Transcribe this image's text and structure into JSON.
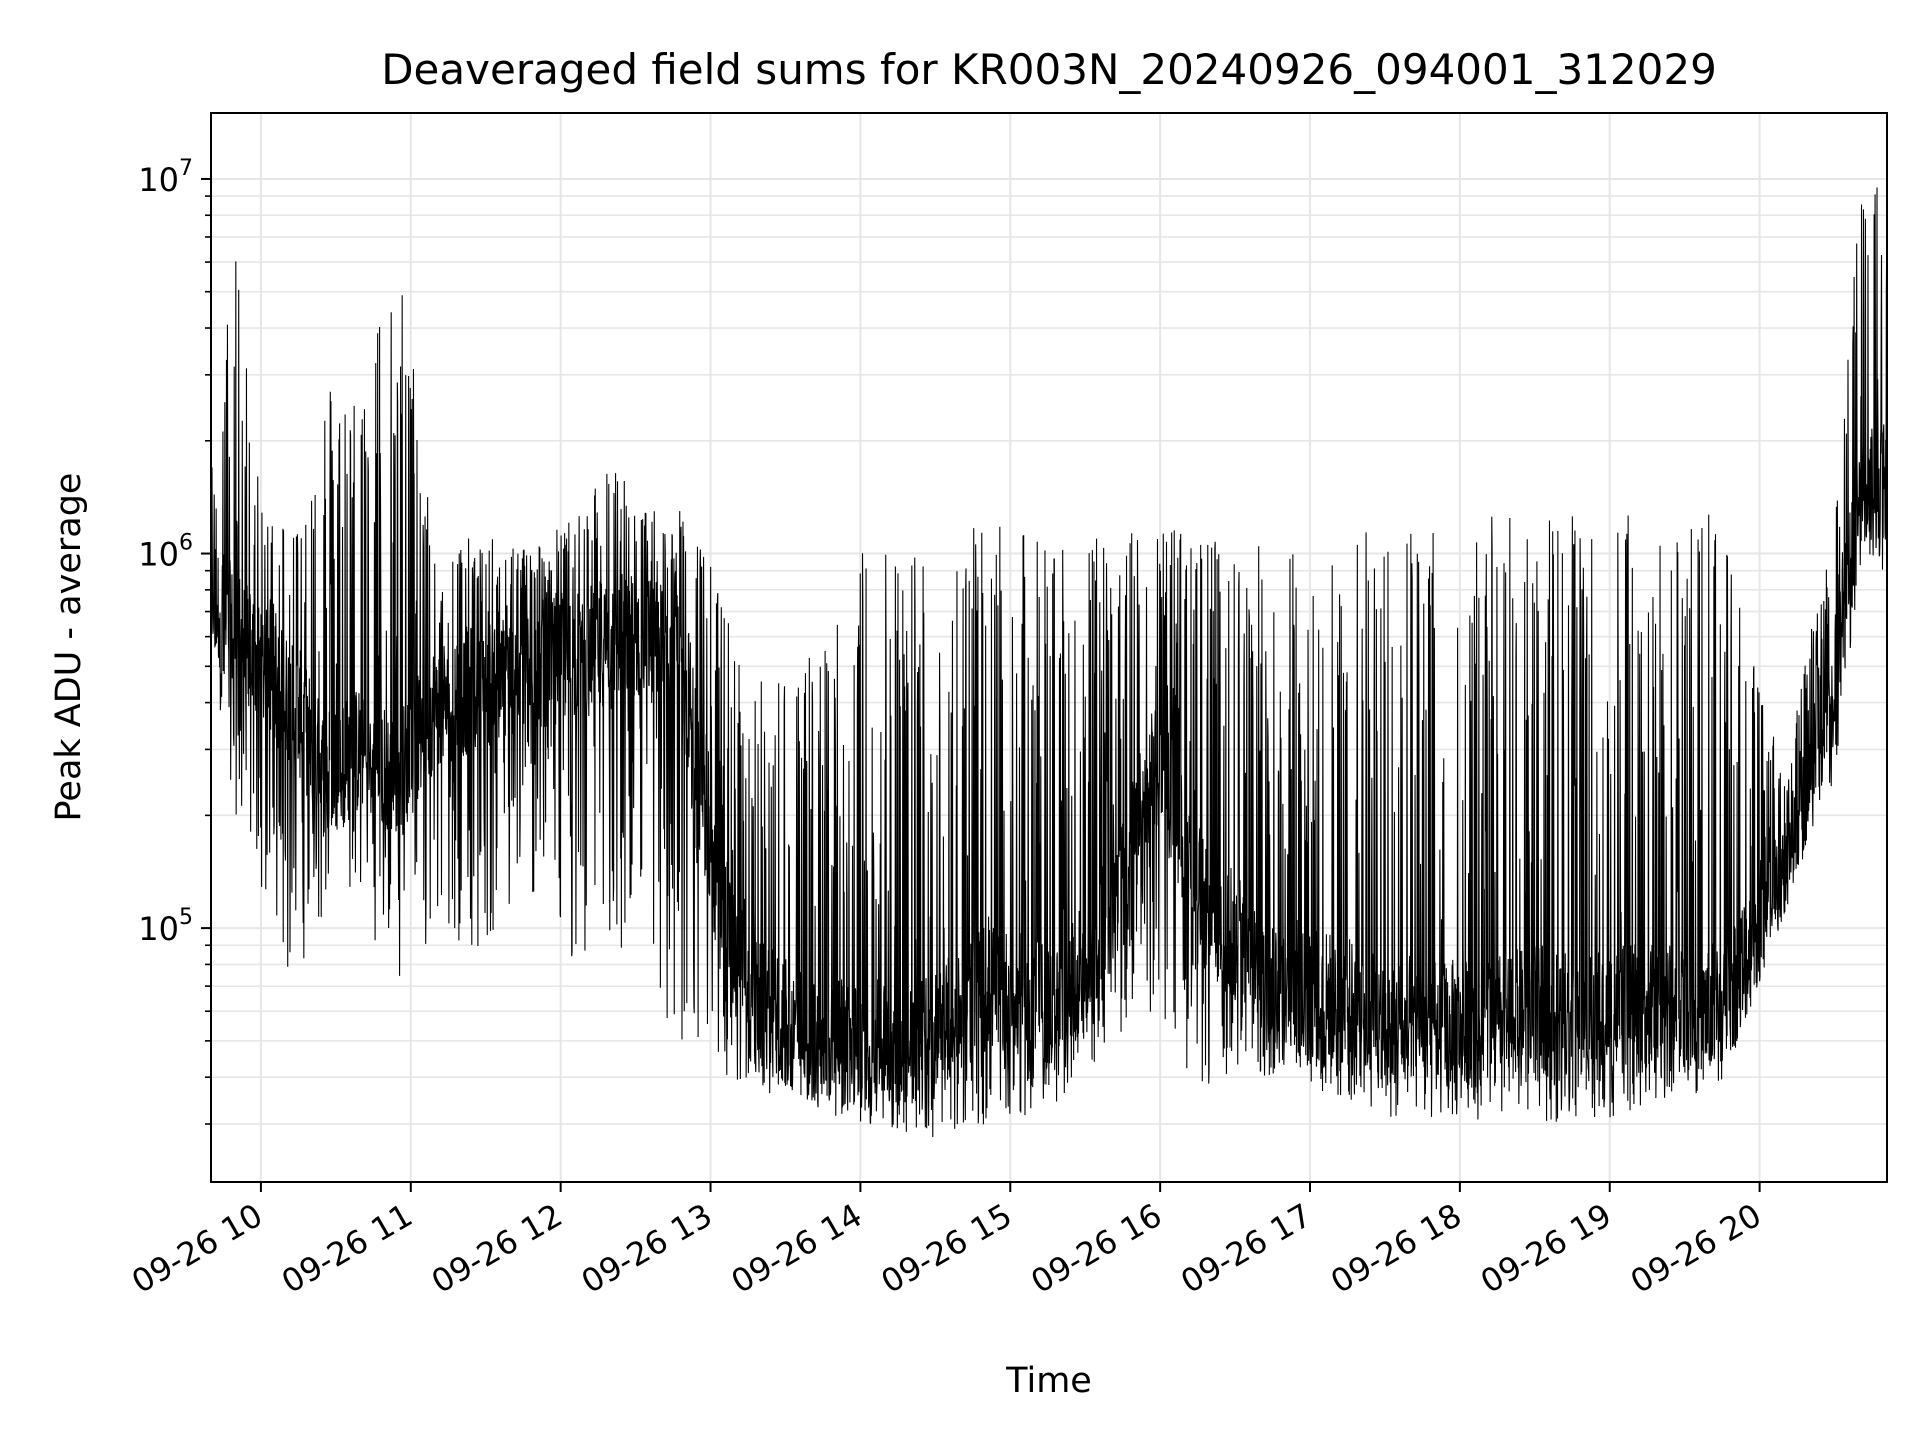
{
  "chart_data": {
    "type": "line",
    "title": "Deaveraged field sums for KR003N_20240926_094001_312029",
    "xlabel": "Time",
    "ylabel": "Peak ADU - average",
    "yscale": "log",
    "ylim": [
      21000,
      15000000
    ],
    "xlim": [
      "2024-09-26 09:40:01",
      "2024-09-26 20:51:00"
    ],
    "x_ticks": [
      {
        "value": "2024-09-26 10:00",
        "label": "09-26 10"
      },
      {
        "value": "2024-09-26 11:00",
        "label": "09-26 11"
      },
      {
        "value": "2024-09-26 12:00",
        "label": "09-26 12"
      },
      {
        "value": "2024-09-26 13:00",
        "label": "09-26 13"
      },
      {
        "value": "2024-09-26 14:00",
        "label": "09-26 14"
      },
      {
        "value": "2024-09-26 15:00",
        "label": "09-26 15"
      },
      {
        "value": "2024-09-26 16:00",
        "label": "09-26 16"
      },
      {
        "value": "2024-09-26 17:00",
        "label": "09-26 17"
      },
      {
        "value": "2024-09-26 18:00",
        "label": "09-26 18"
      },
      {
        "value": "2024-09-26 19:00",
        "label": "09-26 19"
      },
      {
        "value": "2024-09-26 20:00",
        "label": "09-26 20"
      }
    ],
    "y_ticks": [
      {
        "value": 100000,
        "base": "10",
        "exp": "5"
      },
      {
        "value": 1000000,
        "base": "10",
        "exp": "6"
      },
      {
        "value": 10000000,
        "base": "10",
        "exp": "7"
      }
    ],
    "grid": true,
    "line_color": "#000000",
    "series": [
      {
        "envelope": [
          {
            "x": "2024-09-26 09:40",
            "base": 800000,
            "low": 550000,
            "high": 1700000
          },
          {
            "x": "2024-09-26 09:50",
            "base": 600000,
            "low": 200000,
            "high": 7200000
          },
          {
            "x": "2024-09-26 10:00",
            "base": 500000,
            "low": 130000,
            "high": 1300000
          },
          {
            "x": "2024-09-26 10:15",
            "base": 380000,
            "low": 60000,
            "high": 1300000
          },
          {
            "x": "2024-09-26 10:25",
            "base": 260000,
            "low": 110000,
            "high": 3100000
          },
          {
            "x": "2024-09-26 10:40",
            "base": 300000,
            "low": 110000,
            "high": 2900000
          },
          {
            "x": "2024-09-26 10:55",
            "base": 250000,
            "low": 70000,
            "high": 7200000
          },
          {
            "x": "2024-09-26 11:10",
            "base": 400000,
            "low": 80000,
            "high": 1100000
          },
          {
            "x": "2024-09-26 11:30",
            "base": 450000,
            "low": 90000,
            "high": 1100000
          },
          {
            "x": "2024-09-26 11:50",
            "base": 500000,
            "low": 110000,
            "high": 1100000
          },
          {
            "x": "2024-09-26 12:10",
            "base": 550000,
            "low": 70000,
            "high": 1300000
          },
          {
            "x": "2024-09-26 12:20",
            "base": 600000,
            "low": 75000,
            "high": 1900000
          },
          {
            "x": "2024-09-26 12:35",
            "base": 600000,
            "low": 60000,
            "high": 1300000
          },
          {
            "x": "2024-09-26 12:50",
            "base": 500000,
            "low": 40000,
            "high": 1300000
          },
          {
            "x": "2024-09-26 13:00",
            "base": 150000,
            "low": 40000,
            "high": 950000
          },
          {
            "x": "2024-09-26 13:15",
            "base": 65000,
            "low": 38000,
            "high": 450000
          },
          {
            "x": "2024-09-26 13:40",
            "base": 50000,
            "low": 33000,
            "high": 550000
          },
          {
            "x": "2024-09-26 14:00",
            "base": 48000,
            "low": 30000,
            "high": 1100000
          },
          {
            "x": "2024-09-26 14:30",
            "base": 52000,
            "low": 27000,
            "high": 1100000
          },
          {
            "x": "2024-09-26 14:50",
            "base": 70000,
            "low": 30000,
            "high": 1200000
          },
          {
            "x": "2024-09-26 15:20",
            "base": 60000,
            "low": 33000,
            "high": 1100000
          },
          {
            "x": "2024-09-26 15:40",
            "base": 110000,
            "low": 50000,
            "high": 1100000
          },
          {
            "x": "2024-09-26 16:00",
            "base": 300000,
            "low": 60000,
            "high": 1250000
          },
          {
            "x": "2024-09-26 16:15",
            "base": 120000,
            "low": 36000,
            "high": 1100000
          },
          {
            "x": "2024-09-26 16:45",
            "base": 75000,
            "low": 40000,
            "high": 1100000
          },
          {
            "x": "2024-09-26 17:10",
            "base": 65000,
            "low": 35000,
            "high": 1100000
          },
          {
            "x": "2024-09-26 17:30",
            "base": 58000,
            "low": 31000,
            "high": 1200000
          },
          {
            "x": "2024-09-26 18:00",
            "base": 55000,
            "low": 31000,
            "high": 1200000
          },
          {
            "x": "2024-09-26 18:30",
            "base": 60000,
            "low": 30000,
            "high": 1400000
          },
          {
            "x": "2024-09-26 19:00",
            "base": 60000,
            "low": 31000,
            "high": 1300000
          },
          {
            "x": "2024-09-26 19:45",
            "base": 62000,
            "low": 38000,
            "high": 1300000
          },
          {
            "x": "2024-09-26 20:10",
            "base": 140000,
            "low": 110000,
            "high": 250000
          },
          {
            "x": "2024-09-26 20:30",
            "base": 500000,
            "low": 250000,
            "high": 1400000
          },
          {
            "x": "2024-09-26 20:40",
            "base": 1400000,
            "low": 900000,
            "high": 10800000
          },
          {
            "x": "2024-09-26 20:51",
            "base": 1500000,
            "low": 900000,
            "high": 9500000
          }
        ]
      }
    ]
  }
}
